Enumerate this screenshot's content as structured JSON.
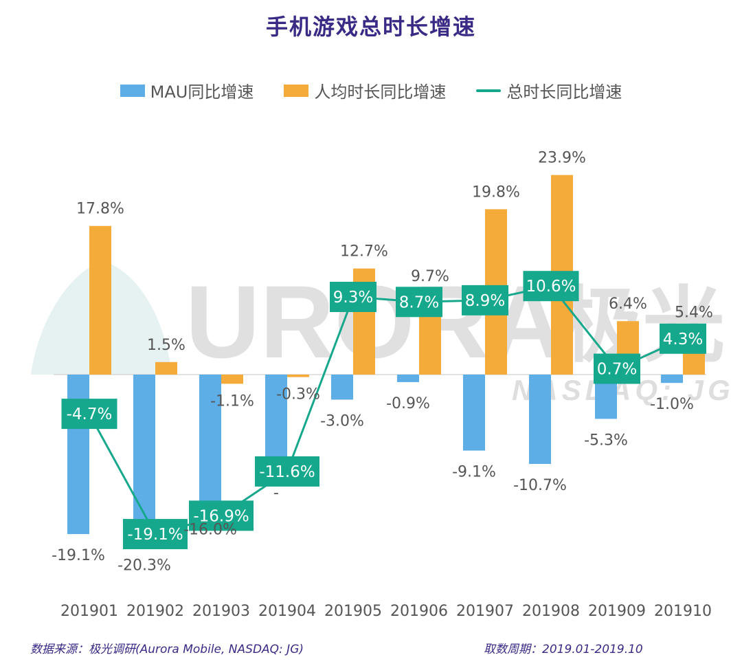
{
  "chart_data": {
    "type": "bar",
    "title": "手机游戏总时长增速",
    "categories": [
      "201901",
      "201902",
      "201903",
      "201904",
      "201905",
      "201906",
      "201907",
      "201908",
      "201909",
      "201910"
    ],
    "series": [
      {
        "name": "MAU同比增速",
        "kind": "bar",
        "color": "#5dade6",
        "values": [
          -19.1,
          -20.3,
          -16.0,
          -11.6,
          -3.0,
          -0.9,
          -9.1,
          -10.7,
          -5.3,
          -1.0
        ],
        "labels": [
          "-19.1%",
          "-20.3%",
          "-16.0%",
          "-",
          "-3.0%",
          "-0.9%",
          "-9.1%",
          "-10.7%",
          "-5.3%",
          "-1.0%"
        ]
      },
      {
        "name": "人均时长同比增速",
        "kind": "bar",
        "color": "#f5ab3a",
        "values": [
          17.8,
          1.5,
          -1.1,
          -0.3,
          12.7,
          9.7,
          19.8,
          23.9,
          6.4,
          5.4
        ],
        "labels": [
          "17.8%",
          "1.5%",
          "-1.1%",
          "-0.3%",
          "12.7%",
          "9.7%",
          "19.8%",
          "23.9%",
          "6.4%",
          "5.4%"
        ]
      },
      {
        "name": "总时长同比增速",
        "kind": "line",
        "color": "#16a88c",
        "values": [
          -4.7,
          -19.1,
          -16.9,
          -11.6,
          9.3,
          8.7,
          8.9,
          10.6,
          0.7,
          4.3
        ],
        "labels": [
          "-4.7%",
          "-19.1%",
          "-16.9%",
          "-11.6%",
          "9.3%",
          "8.7%",
          "8.9%",
          "10.6%",
          "0.7%",
          "4.3%"
        ]
      }
    ],
    "ylim": [
      -25,
      25
    ],
    "grid": false,
    "legend_position": "top-center"
  },
  "watermark": {
    "logo_text": "URORA",
    "cn_text": "极光",
    "sub_text": "NASDAQ: JG",
    "color": "#d6d6d6"
  },
  "footer": {
    "source": "数据来源：极光调研(Aurora Mobile, NASDAQ: JG)",
    "period": "取数周期：2019.01-2019.10"
  }
}
